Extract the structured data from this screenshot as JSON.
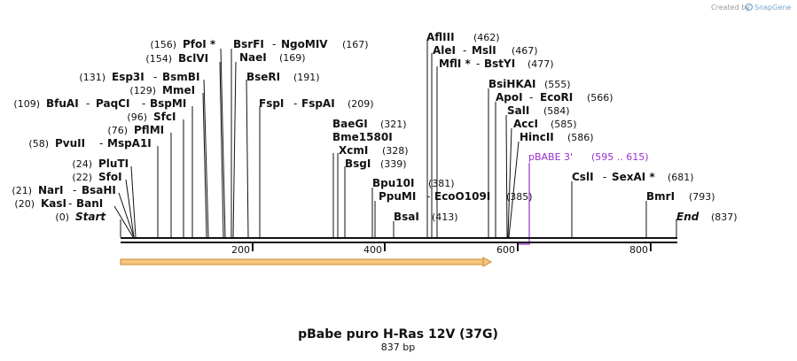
{
  "diagram": {
    "title": "pBabe puro H-Ras 12V (37G)",
    "length_label": "837 bp",
    "credit": "Created by",
    "brand": "SnapGene",
    "sequence_length": 837,
    "axis_ticks": [
      "200",
      "400",
      "600",
      "800"
    ],
    "feature": {
      "label": "pBABE 3'",
      "range": "(595 .. 615)",
      "color": "#9b2fd0"
    },
    "orf_color": "#f5c77e",
    "sites": [
      {
        "name": "Start",
        "pos": "(0)"
      },
      {
        "name": "KasI",
        "pos": "(20)",
        "alt": "BanI"
      },
      {
        "name": "NarI",
        "pos": "(21)",
        "alt": "BsaHI"
      },
      {
        "name": "SfoI",
        "pos": "(22)"
      },
      {
        "name": "PluTI",
        "pos": "(24)"
      },
      {
        "name": "PvuII",
        "pos": "(58)",
        "alt": "MspA1I"
      },
      {
        "name": "PflMI",
        "pos": "(76)"
      },
      {
        "name": "SfcI",
        "pos": "(96)"
      },
      {
        "name": "BfuAI",
        "pos": "(109)",
        "alt": "PaqCI",
        "alt2": "BspMI"
      },
      {
        "name": "MmeI",
        "pos": "(129)"
      },
      {
        "name": "Esp3I",
        "pos": "(131)",
        "alt": "BsmBI"
      },
      {
        "name": "BclVI",
        "pos": "(154)"
      },
      {
        "name": "PfoI *",
        "pos": "(156)"
      },
      {
        "name": "BsrFI",
        "pos": "(167)",
        "alt": "NgoMIV"
      },
      {
        "name": "NaeI",
        "pos": "(169)"
      },
      {
        "name": "BseRI",
        "pos": "(191)"
      },
      {
        "name": "FspI",
        "pos": "(209)",
        "alt": "FspAI"
      },
      {
        "name": "BaeGI",
        "pos": "(321)"
      },
      {
        "name": "Bme1580I",
        "pos": ""
      },
      {
        "name": "XcmI",
        "pos": "(328)"
      },
      {
        "name": "BsgI",
        "pos": "(339)"
      },
      {
        "name": "Bpu10I",
        "pos": "(381)"
      },
      {
        "name": "PpuMI",
        "pos": "(385)",
        "alt": "EcoO109I"
      },
      {
        "name": "BsaI",
        "pos": "(413)"
      },
      {
        "name": "AflIII",
        "pos": "(462)"
      },
      {
        "name": "AleI",
        "pos": "(467)",
        "alt": "MslI"
      },
      {
        "name": "MflI *",
        "pos": "(477)",
        "alt": "BstYI"
      },
      {
        "name": "BsiHKAI",
        "pos": "(555)"
      },
      {
        "name": "ApoI",
        "pos": "(566)",
        "alt": "EcoRI"
      },
      {
        "name": "SalI",
        "pos": "(584)"
      },
      {
        "name": "AccI",
        "pos": "(585)"
      },
      {
        "name": "HincII",
        "pos": "(586)"
      },
      {
        "name": "CslI",
        "pos": "(681)",
        "alt": "SexAI *"
      },
      {
        "name": "BmrI",
        "pos": "(793)"
      },
      {
        "name": "End",
        "pos": "(837)"
      }
    ]
  }
}
